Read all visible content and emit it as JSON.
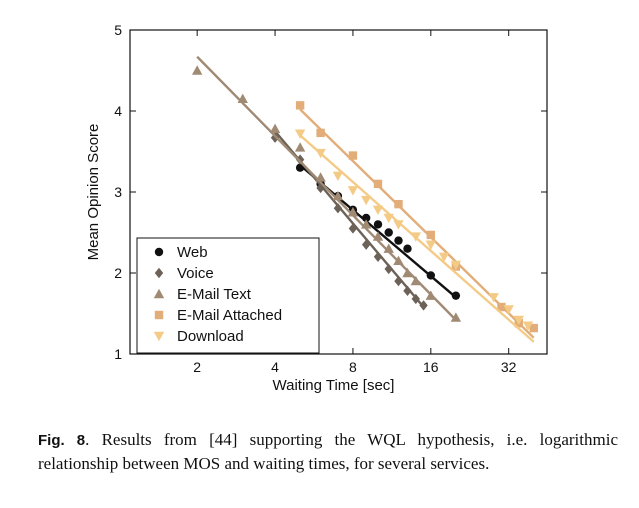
{
  "chart_data": {
    "type": "scatter",
    "xscale": "log2",
    "xlabel": "Waiting Time [sec]",
    "ylabel": "Mean Opinion Score",
    "xlim": [
      1.1,
      45
    ],
    "ylim": [
      1,
      5
    ],
    "xticks": [
      2,
      4,
      8,
      16,
      32
    ],
    "yticks": [
      1,
      2,
      3,
      4,
      5
    ],
    "legend_position": "bottom-left",
    "series": [
      {
        "name": "Web",
        "marker": "circle",
        "color": "#111111",
        "points": [
          [
            5,
            3.3
          ],
          [
            6,
            3.1
          ],
          [
            7,
            2.95
          ],
          [
            8,
            2.78
          ],
          [
            9,
            2.68
          ],
          [
            10,
            2.6
          ],
          [
            11,
            2.5
          ],
          [
            12,
            2.4
          ],
          [
            13,
            2.3
          ],
          [
            16,
            1.97
          ],
          [
            20,
            1.72
          ]
        ],
        "fit": [
          [
            5,
            3.33
          ],
          [
            20,
            1.7
          ]
        ]
      },
      {
        "name": "Voice",
        "marker": "diamond",
        "color": "#6d6258",
        "points": [
          [
            4,
            3.67
          ],
          [
            5,
            3.4
          ],
          [
            6,
            3.05
          ],
          [
            7,
            2.8
          ],
          [
            8,
            2.55
          ],
          [
            9,
            2.35
          ],
          [
            10,
            2.2
          ],
          [
            11,
            2.05
          ],
          [
            12,
            1.9
          ],
          [
            13,
            1.78
          ],
          [
            14,
            1.68
          ],
          [
            15,
            1.6
          ]
        ],
        "fit": [
          [
            4,
            3.75
          ],
          [
            15,
            1.58
          ]
        ]
      },
      {
        "name": "E-Mail Text",
        "marker": "triangle-up",
        "color": "#a08a74",
        "points": [
          [
            2,
            4.5
          ],
          [
            3,
            4.15
          ],
          [
            4,
            3.78
          ],
          [
            5,
            3.55
          ],
          [
            6,
            3.18
          ],
          [
            7,
            2.95
          ],
          [
            8,
            2.75
          ],
          [
            9,
            2.6
          ],
          [
            10,
            2.45
          ],
          [
            11,
            2.3
          ],
          [
            12,
            2.15
          ],
          [
            13,
            2.0
          ],
          [
            14,
            1.9
          ],
          [
            16,
            1.72
          ],
          [
            20,
            1.45
          ]
        ],
        "fit": [
          [
            2,
            4.67
          ],
          [
            20,
            1.42
          ]
        ]
      },
      {
        "name": "E-Mail Attached",
        "marker": "square",
        "color": "#e2ad78",
        "points": [
          [
            5,
            4.07
          ],
          [
            6,
            3.73
          ],
          [
            8,
            3.45
          ],
          [
            10,
            3.1
          ],
          [
            12,
            2.85
          ],
          [
            16,
            2.47
          ],
          [
            20,
            2.08
          ],
          [
            30,
            1.58
          ],
          [
            35,
            1.38
          ],
          [
            40,
            1.32
          ]
        ],
        "fit": [
          [
            5,
            4.02
          ],
          [
            40,
            1.2
          ]
        ]
      },
      {
        "name": "Download",
        "marker": "triangle-down",
        "color": "#f4cb86",
        "points": [
          [
            5,
            3.72
          ],
          [
            6,
            3.48
          ],
          [
            7,
            3.2
          ],
          [
            8,
            3.02
          ],
          [
            9,
            2.9
          ],
          [
            10,
            2.78
          ],
          [
            11,
            2.68
          ],
          [
            12,
            2.6
          ],
          [
            14,
            2.45
          ],
          [
            16,
            2.35
          ],
          [
            18,
            2.2
          ],
          [
            20,
            2.1
          ],
          [
            28,
            1.7
          ],
          [
            32,
            1.55
          ],
          [
            35,
            1.42
          ],
          [
            38,
            1.35
          ]
        ],
        "fit": [
          [
            5,
            3.7
          ],
          [
            40,
            1.15
          ]
        ]
      }
    ]
  },
  "caption": {
    "label": "Fig. 8",
    "text": ". Results from [44] supporting the WQL hypothesis, i.e. logarithmic relationship between MOS and waiting times, for several services."
  }
}
